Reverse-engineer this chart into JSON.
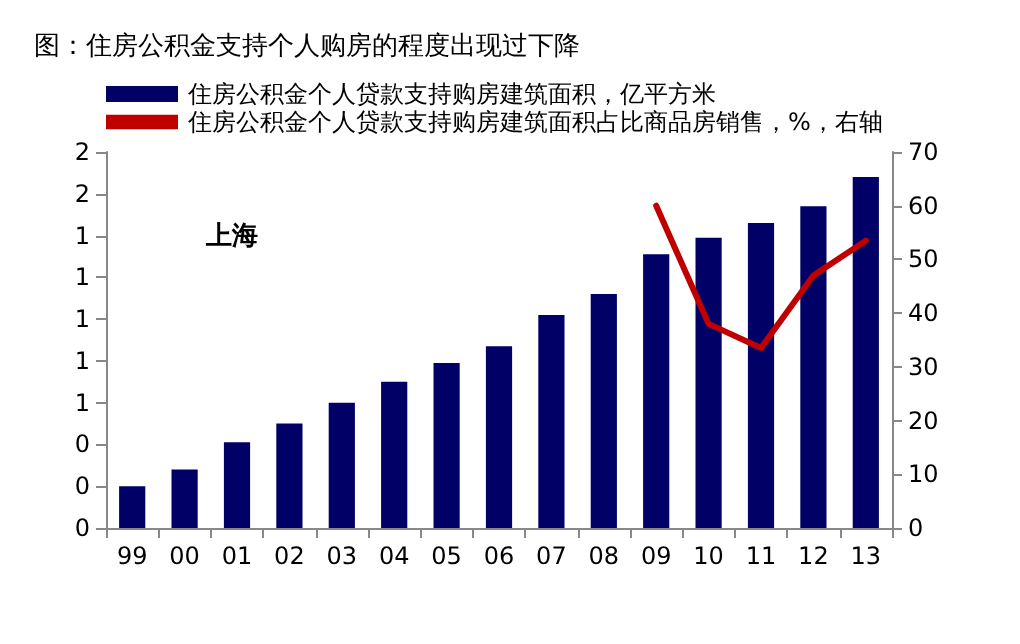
{
  "chart_data": {
    "type": "bar",
    "title": "图：住房公积金支持个人购房的程度出现过下降",
    "annotations": [
      "上海"
    ],
    "categories": [
      "99",
      "00",
      "01",
      "02",
      "03",
      "04",
      "05",
      "06",
      "07",
      "08",
      "09",
      "10",
      "11",
      "12",
      "13"
    ],
    "series": [
      {
        "name": "住房公积金个人贷款支持购房建筑面积，亿平方米",
        "color": "#000066",
        "values": [
          0.2,
          0.28,
          0.41,
          0.5,
          0.6,
          0.7,
          0.79,
          0.87,
          1.02,
          1.12,
          1.31,
          1.39,
          1.46,
          1.54,
          1.68
        ]
      },
      {
        "name": "住房公积金个人贷款支持购房建筑面积占比商品房销售，%，右轴",
        "type": "line",
        "axis": "y2",
        "color": "#c00000",
        "values": [
          null,
          null,
          null,
          null,
          null,
          null,
          null,
          null,
          null,
          null,
          60,
          38,
          33.5,
          47,
          53.5
        ]
      }
    ],
    "ylim": [
      0,
      1.8
    ],
    "yticks": [
      {
        "value": 0,
        "label": "0"
      },
      {
        "value": 0.2,
        "label": "0"
      },
      {
        "value": 0.4,
        "label": "0"
      },
      {
        "value": 0.6,
        "label": "1"
      },
      {
        "value": 0.8,
        "label": "1"
      },
      {
        "value": 1,
        "label": "1"
      },
      {
        "value": 1.2,
        "label": "1"
      },
      {
        "value": 1.4,
        "label": "1"
      },
      {
        "value": 1.6,
        "label": "2"
      },
      {
        "value": 1.8,
        "label": "2"
      }
    ],
    "y2lim": [
      0,
      70
    ],
    "y2ticks": [
      0,
      10,
      20,
      30,
      40,
      50,
      60,
      70
    ],
    "grid": false,
    "legend": "top",
    "marker": "none",
    "line_style": "solid"
  }
}
